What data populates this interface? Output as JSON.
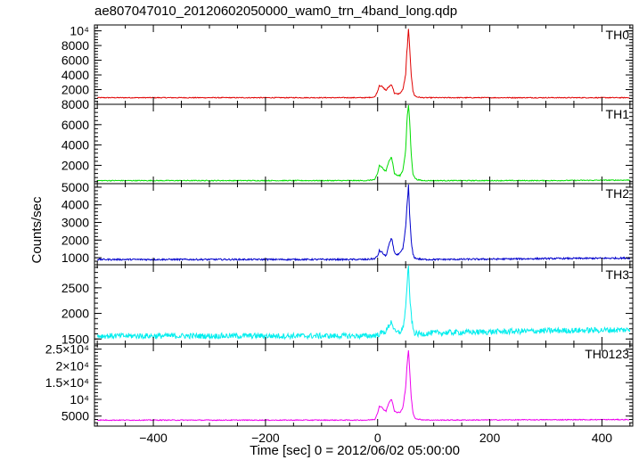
{
  "chart_data": {
    "type": "line",
    "title": "ae807047010_20120602050000_wam0_trn_4band_long.qdp",
    "xlabel": "Time [sec] 0 = 2012/06/02 05:00:00",
    "ylabel": "Counts/sec",
    "xlim": [
      -505,
      455
    ],
    "x_ticks": [
      {
        "value": -400,
        "label": "−400"
      },
      {
        "value": -200,
        "label": "−200"
      },
      {
        "value": 0,
        "label": "0"
      },
      {
        "value": 200,
        "label": "200"
      },
      {
        "value": 400,
        "label": "400"
      }
    ],
    "grid": false,
    "panels": [
      {
        "name": "TH0",
        "color": "#e00000",
        "ylim": [
          0,
          10800
        ],
        "ticks": [
          {
            "value": 2000,
            "label": "2000"
          },
          {
            "value": 4000,
            "label": "4000"
          },
          {
            "value": 6000,
            "label": "6000"
          },
          {
            "value": 8000,
            "label": "8000"
          },
          {
            "value": 10000,
            "label": "10⁴"
          }
        ],
        "series": {
          "baseline": 900,
          "noise": 60,
          "x": [
            -500,
            -20,
            -5,
            0,
            3,
            8,
            12,
            15,
            20,
            25,
            30,
            35,
            40,
            45,
            50,
            52,
            55,
            57,
            60,
            63,
            66,
            70,
            80,
            100,
            200,
            300,
            450
          ],
          "y": [
            900,
            900,
            1000,
            1800,
            2600,
            2400,
            2100,
            1900,
            2400,
            2700,
            1500,
            1400,
            1500,
            2000,
            4000,
            7000,
            10000,
            8000,
            4000,
            1800,
            1200,
            1000,
            900,
            900,
            900,
            900,
            900
          ]
        }
      },
      {
        "name": "TH1",
        "color": "#00dd00",
        "ylim": [
          200,
          8000
        ],
        "ticks": [
          {
            "value": 2000,
            "label": "2000"
          },
          {
            "value": 4000,
            "label": "4000"
          },
          {
            "value": 6000,
            "label": "6000"
          },
          {
            "value": 8000,
            "label": "8000"
          }
        ],
        "series": {
          "baseline": 500,
          "noise": 45,
          "x": [
            -500,
            -20,
            -5,
            0,
            3,
            8,
            12,
            15,
            20,
            25,
            30,
            35,
            40,
            45,
            50,
            52,
            55,
            57,
            60,
            63,
            66,
            70,
            80,
            100,
            200,
            300,
            450
          ],
          "y": [
            500,
            500,
            600,
            1200,
            2000,
            1800,
            1500,
            1400,
            2500,
            2800,
            1200,
            1000,
            1000,
            1500,
            3500,
            6000,
            8200,
            6500,
            3000,
            1200,
            800,
            600,
            500,
            500,
            500,
            500,
            550
          ]
        }
      },
      {
        "name": "TH2",
        "color": "#0000cc",
        "ylim": [
          600,
          5200
        ],
        "ticks": [
          {
            "value": 1000,
            "label": "1000"
          },
          {
            "value": 2000,
            "label": "2000"
          },
          {
            "value": 3000,
            "label": "3000"
          },
          {
            "value": 4000,
            "label": "4000"
          },
          {
            "value": 5000,
            "label": "5000"
          }
        ],
        "series": {
          "baseline": 900,
          "noise": 45,
          "x": [
            -500,
            -20,
            -5,
            0,
            3,
            8,
            12,
            15,
            20,
            25,
            30,
            35,
            40,
            45,
            50,
            52,
            55,
            57,
            60,
            63,
            66,
            70,
            80,
            100,
            200,
            300,
            450
          ],
          "y": [
            900,
            900,
            950,
            1100,
            1400,
            1300,
            1150,
            1100,
            1700,
            2100,
            1300,
            1150,
            1250,
            1500,
            2700,
            3800,
            5100,
            3500,
            1900,
            1200,
            1000,
            950,
            900,
            900,
            920,
            950,
            980
          ]
        }
      },
      {
        "name": "TH3",
        "color": "#00eeee",
        "ylim": [
          1400,
          2950
        ],
        "ticks": [
          {
            "value": 1500,
            "label": "1500"
          },
          {
            "value": 2000,
            "label": "2000"
          },
          {
            "value": 2500,
            "label": "2500"
          }
        ],
        "series": {
          "baseline": 1560,
          "noise": 55,
          "x": [
            -500,
            -20,
            -5,
            0,
            3,
            8,
            12,
            15,
            20,
            25,
            30,
            35,
            40,
            45,
            50,
            52,
            55,
            57,
            60,
            63,
            66,
            70,
            80,
            100,
            200,
            300,
            450
          ],
          "y": [
            1560,
            1560,
            1570,
            1580,
            1600,
            1620,
            1640,
            1650,
            1760,
            1850,
            1650,
            1620,
            1640,
            1700,
            2100,
            2500,
            2900,
            2400,
            1950,
            1700,
            1620,
            1600,
            1600,
            1620,
            1640,
            1660,
            1680
          ]
        }
      },
      {
        "name": "TH0123",
        "color": "#ee00ee",
        "ylim": [
          2000,
          26500
        ],
        "ticks": [
          {
            "value": 5000,
            "label": "5000"
          },
          {
            "value": 10000,
            "label": "10⁴"
          },
          {
            "value": 15000,
            "label": "1.5×10⁴"
          },
          {
            "value": 20000,
            "label": "2×10⁴"
          },
          {
            "value": 25000,
            "label": "2.5×10⁴"
          }
        ],
        "series": {
          "baseline": 3800,
          "noise": 130,
          "x": [
            -500,
            -20,
            -5,
            0,
            3,
            8,
            12,
            15,
            20,
            25,
            30,
            35,
            40,
            45,
            50,
            52,
            55,
            57,
            60,
            63,
            66,
            70,
            80,
            100,
            200,
            300,
            450
          ],
          "y": [
            3800,
            3800,
            4000,
            6000,
            8000,
            7500,
            6800,
            6500,
            9000,
            10000,
            6500,
            6000,
            6200,
            7500,
            13500,
            19000,
            25000,
            19000,
            10500,
            6000,
            4600,
            4100,
            3900,
            3800,
            3850,
            3900,
            3950
          ]
        }
      }
    ]
  }
}
